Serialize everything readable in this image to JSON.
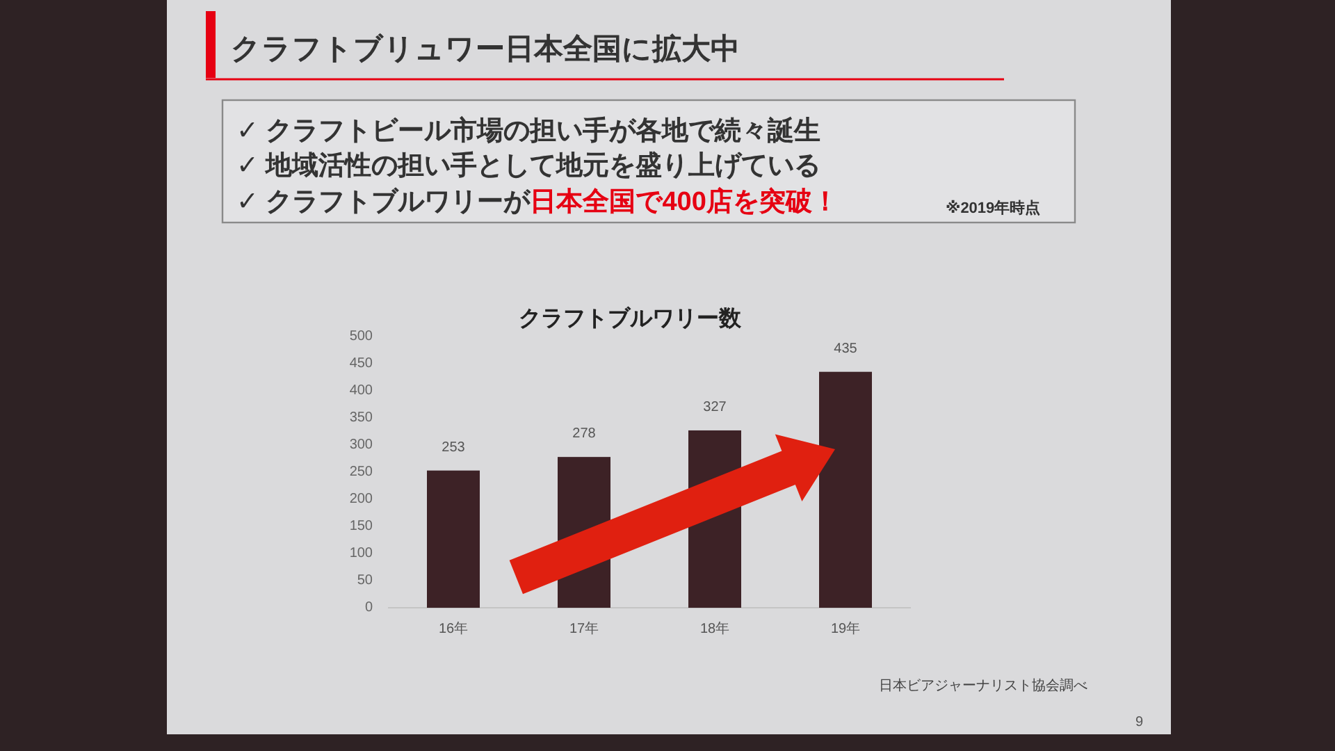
{
  "chart_data": {
    "type": "bar",
    "title": "クラフトブリュワー日本全国に拡大中",
    "subtitle": "クラフトブルワリー数",
    "categories": [
      "16年",
      "17年",
      "18年",
      "19年"
    ],
    "values": [
      253,
      278,
      327,
      435
    ],
    "color": "#3d2226",
    "ylim": [
      0,
      500
    ],
    "yticks": [
      0,
      50,
      100,
      150,
      200,
      250,
      300,
      350,
      400,
      450,
      500
    ],
    "data_labels": true,
    "annotations": [
      "✓ クラフトビール市場の担い手が各地で続々誕生",
      "✓ 地域活性の担い手として地元を盛り上げている",
      "✓ クラフトブルワリーが",
      "日本全国で400店を突破！",
      "※2019年時点",
      "日本ビアジャーナリスト協会調べ",
      "9"
    ]
  }
}
